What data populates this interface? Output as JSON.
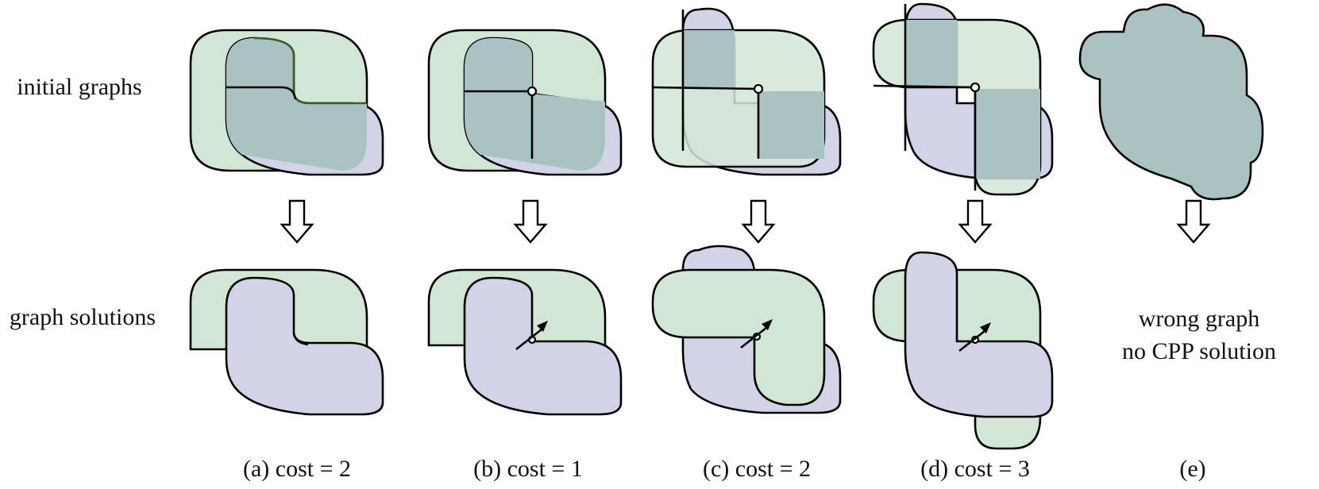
{
  "rows": {
    "initial": "initial graphs",
    "solutions": "graph solutions"
  },
  "captions": {
    "a": "(a) cost = 2",
    "b": "(b) cost = 1",
    "c": "(c) cost = 2",
    "d": "(d) cost = 3",
    "e": "(e)"
  },
  "panel_e_note": {
    "line1": "wrong graph",
    "line2": "no CPP solution"
  },
  "colors": {
    "green_region": "#d2e6d6",
    "purple_region": "#d3d3e7",
    "overlap_region": "#a9c3c2",
    "dark_edge": "#3b5b2f"
  }
}
